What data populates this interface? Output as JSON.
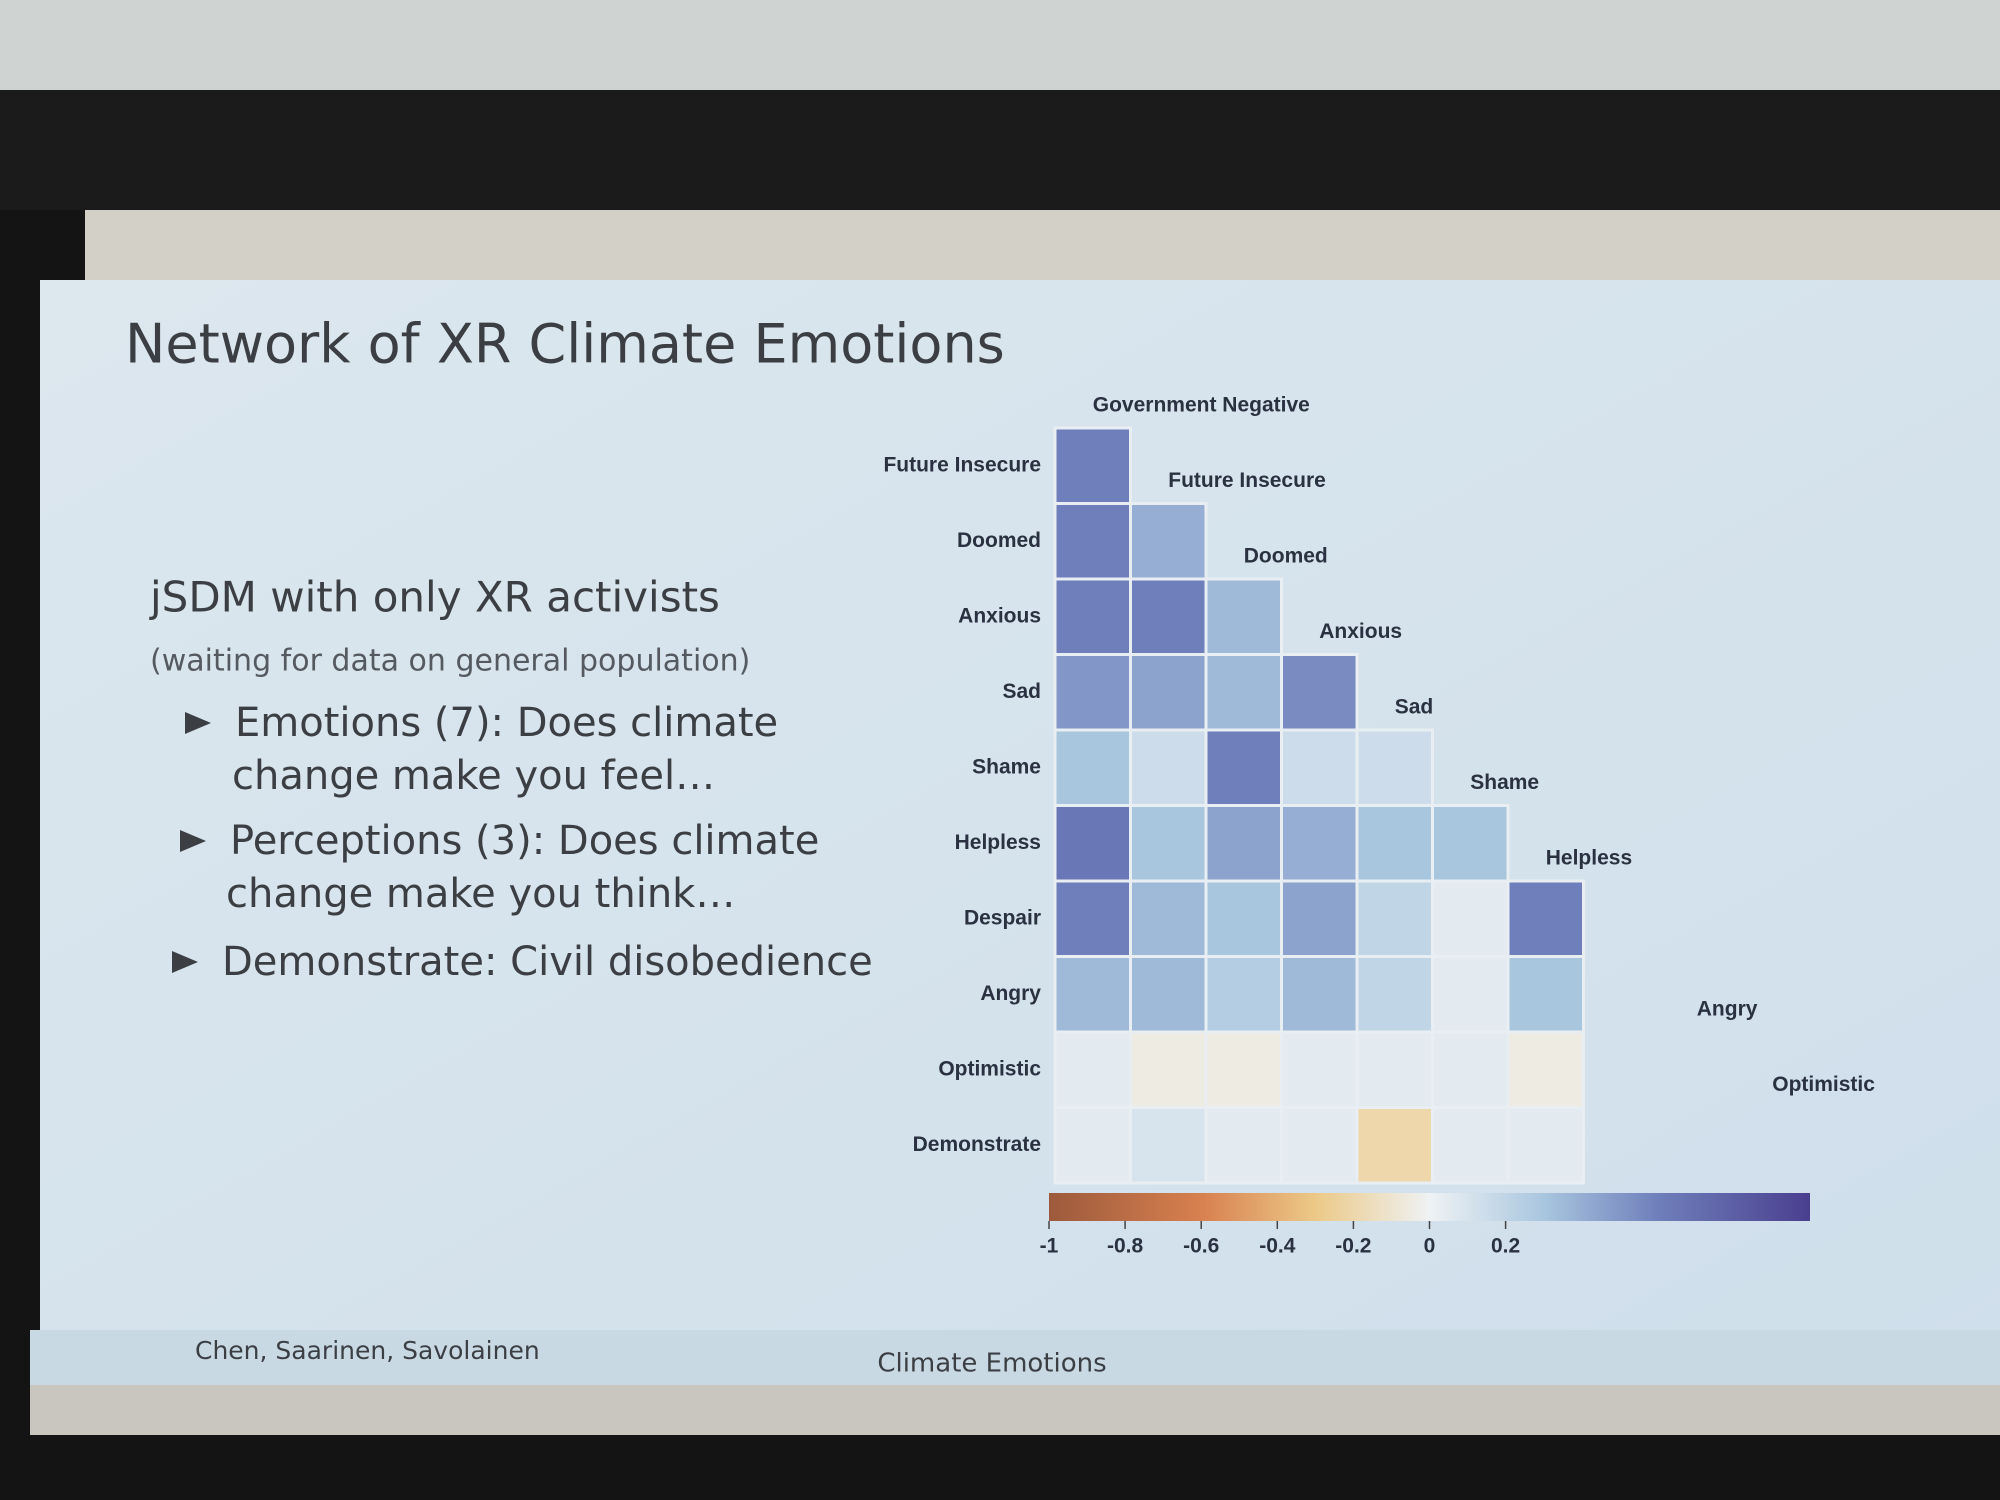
{
  "slide": {
    "title": "Network of XR Climate Emotions",
    "heading": "jSDM with only XR activists",
    "note": "(waiting for data on general population)",
    "bullets": [
      [
        "Emotions (7): Does climate",
        "change make you feel…"
      ],
      [
        "Perceptions (3): Does climate",
        "change make you think…"
      ],
      [
        "Demonstrate: Civil disobedience"
      ]
    ],
    "footer_left": "Chen, Saarinen, Savolainen",
    "footer_center": "Climate Emotions"
  },
  "chart_data": {
    "type": "heatmap",
    "rows": [
      "Future Insecure",
      "Doomed",
      "Anxious",
      "Sad",
      "Shame",
      "Helpless",
      "Despair",
      "Angry",
      "Optimistic",
      "Demonstrate"
    ],
    "columns": [
      "Government Negative",
      "Future Insecure",
      "Doomed",
      "Anxious",
      "Sad",
      "Shame",
      "Helpless",
      null,
      "Angry",
      "Optimistic"
    ],
    "values": [
      [
        0.6
      ],
      [
        0.6,
        0.4
      ],
      [
        0.6,
        0.6,
        0.35
      ],
      [
        0.5,
        0.45,
        0.35,
        0.55
      ],
      [
        0.3,
        0.15,
        0.6,
        0.15,
        0.15
      ],
      [
        0.65,
        0.3,
        0.45,
        0.4,
        0.3,
        0.3
      ],
      [
        0.6,
        0.35,
        0.3,
        0.45,
        0.2,
        0.05,
        0.6
      ],
      [
        0.35,
        0.35,
        0.25,
        0.35,
        0.2,
        0.05,
        0.3,
        null
      ],
      [
        0.05,
        -0.05,
        -0.05,
        0.05,
        0.05,
        0.05,
        -0.05,
        null,
        null
      ],
      [
        0.05,
        0.1,
        0.05,
        0.05,
        -0.2,
        0.05,
        0.05,
        null,
        null,
        null
      ]
    ],
    "clim": [
      -1,
      1
    ],
    "cticks": [
      -1,
      -0.8,
      -0.6,
      -0.4,
      -0.2,
      0,
      0.2
    ],
    "colorscale": [
      [
        -1,
        "#9c5a3c"
      ],
      [
        -0.6,
        "#d8804f"
      ],
      [
        -0.3,
        "#ecc987"
      ],
      [
        0,
        "#eef2f4"
      ],
      [
        0.3,
        "#a9c6df"
      ],
      [
        0.6,
        "#6f7fbb"
      ],
      [
        1,
        "#4a3f8f"
      ]
    ]
  }
}
